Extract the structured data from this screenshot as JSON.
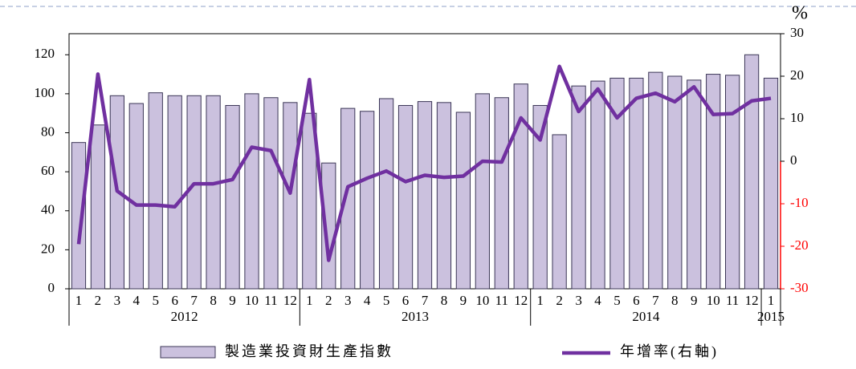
{
  "chart_data": {
    "type": "bar_line",
    "categories": [
      "1",
      "2",
      "3",
      "4",
      "5",
      "6",
      "7",
      "8",
      "9",
      "10",
      "11",
      "12",
      "1",
      "2",
      "3",
      "4",
      "5",
      "6",
      "7",
      "8",
      "9",
      "10",
      "11",
      "12",
      "1",
      "2",
      "3",
      "4",
      "5",
      "6",
      "7",
      "8",
      "9",
      "10",
      "11",
      "12",
      "1"
    ],
    "groups": [
      "2012",
      "2013",
      "2014",
      "2015"
    ],
    "y2_label": "%",
    "series": [
      {
        "name": "製造業投資財生產指數",
        "type": "bar",
        "color": "#cbc1de",
        "edge": "#3b3656",
        "values": [
          75,
          84,
          99,
          95,
          100.5,
          99,
          99,
          99,
          94,
          100,
          98,
          95.5,
          90,
          64.5,
          92.5,
          91,
          97.5,
          94,
          96,
          95.5,
          90.5,
          100,
          98,
          105,
          94,
          79,
          104,
          106.5,
          108,
          108,
          111,
          109,
          107,
          110,
          109.5,
          120,
          108
        ]
      },
      {
        "name": "年增率(右軸)",
        "type": "line",
        "axis": "y2",
        "color": "#7030a0",
        "values": [
          -19.5,
          20.5,
          -7,
          -10.3,
          -10.3,
          -10.7,
          -5.3,
          -5.3,
          -4.3,
          3.3,
          2.5,
          -7.5,
          19.2,
          -23.3,
          -6,
          -4,
          -2.3,
          -4.8,
          -3.3,
          -3.8,
          -3.5,
          0,
          -0.2,
          10.2,
          5,
          22.3,
          11.7,
          17,
          10.2,
          14.8,
          16,
          14,
          17.5,
          11,
          11.2,
          14.2,
          14.8
        ]
      }
    ],
    "ylim": [
      0,
      130.8
    ],
    "yticks": [
      0,
      20,
      40,
      60,
      80,
      100,
      120
    ],
    "y2lim": [
      -30,
      30
    ],
    "y2ticks": [
      -30,
      -20,
      -10,
      0,
      10,
      20,
      30
    ],
    "negative_color": "#ff0000"
  }
}
